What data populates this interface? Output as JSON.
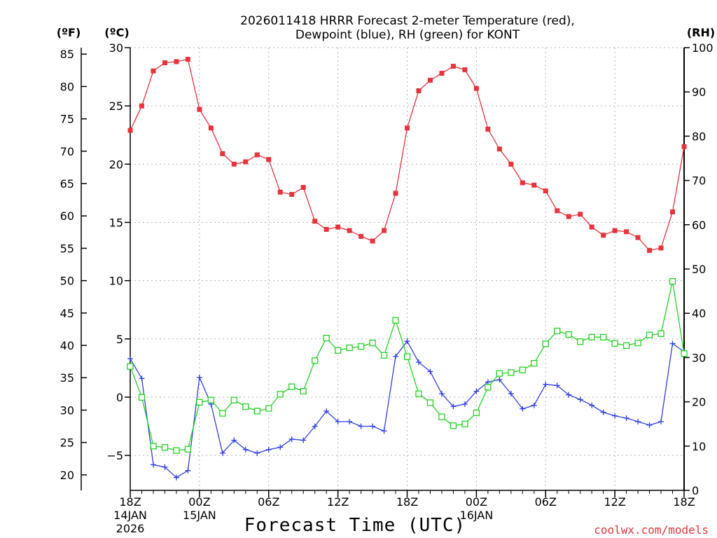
{
  "chart_data": {
    "type": "line",
    "title_lines": [
      "2026011418 HRRR Forecast 2-meter Temperature (red),",
      "Dewpoint (blue), RH (green) for KONT"
    ],
    "units": {
      "fahrenheit": "(ºF)",
      "celsius": "(ºC)",
      "rh": "(RH)"
    },
    "xlabel": "Forecast Time (UTC)",
    "credit": "coolwx.com/models",
    "x_hours": [
      0,
      1,
      2,
      3,
      4,
      5,
      6,
      7,
      8,
      9,
      10,
      11,
      12,
      13,
      14,
      15,
      16,
      17,
      18,
      19,
      20,
      21,
      22,
      23,
      24,
      25,
      26,
      27,
      28,
      29,
      30,
      31,
      32,
      33,
      34,
      35,
      36,
      37,
      38,
      39,
      40,
      41,
      42,
      43,
      44,
      45,
      46,
      47,
      48
    ],
    "xlim": [
      0,
      48
    ],
    "x_ticks": [
      {
        "hour": 0,
        "label": "18Z",
        "sub1": "14JAN",
        "sub2": "2026"
      },
      {
        "hour": 6,
        "label": "00Z",
        "sub1": "15JAN",
        "sub2": ""
      },
      {
        "hour": 12,
        "label": "06Z",
        "sub1": "",
        "sub2": ""
      },
      {
        "hour": 18,
        "label": "12Z",
        "sub1": "",
        "sub2": ""
      },
      {
        "hour": 24,
        "label": "18Z",
        "sub1": "",
        "sub2": ""
      },
      {
        "hour": 30,
        "label": "00Z",
        "sub1": "16JAN",
        "sub2": ""
      },
      {
        "hour": 36,
        "label": "06Z",
        "sub1": "",
        "sub2": ""
      },
      {
        "hour": 42,
        "label": "12Z",
        "sub1": "",
        "sub2": ""
      },
      {
        "hour": 48,
        "label": "18Z",
        "sub1": "",
        "sub2": ""
      }
    ],
    "celsius_axis": {
      "ylim": [
        -8,
        30
      ],
      "ticks": [
        -5,
        0,
        5,
        10,
        15,
        20,
        25,
        30
      ],
      "tick_labels": [
        "−5",
        "0",
        "5",
        "10",
        "15",
        "20",
        "25",
        "30"
      ]
    },
    "fahrenheit_axis": {
      "ticks": [
        20,
        25,
        30,
        35,
        40,
        45,
        50,
        55,
        60,
        65,
        70,
        75,
        80,
        85
      ],
      "tick_labels": [
        "20",
        "25",
        "30",
        "35",
        "40",
        "45",
        "50",
        "55",
        "60",
        "65",
        "70",
        "75",
        "80",
        "85"
      ]
    },
    "rh_axis": {
      "ylim": [
        0,
        100
      ],
      "ticks": [
        0,
        10,
        20,
        30,
        40,
        50,
        60,
        70,
        80,
        90,
        100
      ],
      "tick_labels": [
        "0",
        "10",
        "20",
        "30",
        "40",
        "50",
        "60",
        "70",
        "80",
        "90",
        "100"
      ]
    },
    "series": [
      {
        "name": "Temperature",
        "axis": "celsius",
        "color": "#e8323c",
        "marker": "filled-square",
        "values": [
          22.9,
          25.0,
          28.0,
          28.7,
          28.8,
          29.0,
          24.7,
          23.1,
          20.9,
          20.0,
          20.2,
          20.8,
          20.4,
          17.6,
          17.4,
          18.0,
          15.1,
          14.4,
          14.6,
          14.3,
          13.8,
          13.4,
          14.3,
          17.5,
          23.1,
          26.3,
          27.2,
          27.8,
          28.4,
          28.1,
          26.5,
          23.0,
          21.3,
          20.0,
          18.4,
          18.2,
          17.7,
          16.0,
          15.5,
          15.7,
          14.6,
          13.9,
          14.3,
          14.2,
          13.7,
          12.6,
          12.8,
          15.9,
          21.5
        ]
      },
      {
        "name": "Dewpoint",
        "axis": "celsius",
        "color": "#2e3ee8",
        "marker": "plus",
        "values": [
          3.3,
          1.6,
          -5.8,
          -6.0,
          -6.9,
          -6.3,
          1.7,
          -0.6,
          -4.8,
          -3.7,
          -4.5,
          -4.8,
          -4.5,
          -4.3,
          -3.6,
          -3.7,
          -2.5,
          -1.2,
          -2.1,
          -2.1,
          -2.5,
          -2.5,
          -2.9,
          3.5,
          4.8,
          3.0,
          2.2,
          0.3,
          -0.8,
          -0.6,
          0.5,
          1.3,
          1.5,
          0.3,
          -1.0,
          -0.7,
          1.1,
          1.0,
          0.2,
          -0.2,
          -0.7,
          -1.3,
          -1.6,
          -1.8,
          -2.1,
          -2.4,
          -2.1,
          4.6,
          3.9
        ]
      },
      {
        "name": "RH",
        "axis": "rh",
        "color": "#22d322",
        "marker": "open-square",
        "values": [
          28,
          21,
          10,
          9.7,
          9,
          9.3,
          19.9,
          20.4,
          17.4,
          20.4,
          18.9,
          17.9,
          18.5,
          21.7,
          23.4,
          22.4,
          29.3,
          34.4,
          31.6,
          32.2,
          32.5,
          33.3,
          30.5,
          38.4,
          30.2,
          21.8,
          19.8,
          16.6,
          14.6,
          15,
          17.5,
          23.3,
          26.4,
          26.6,
          27.2,
          28.7,
          33.1,
          36,
          35.2,
          33.6,
          34.6,
          34.6,
          33.2,
          32.7,
          33.3,
          35.1,
          35.4,
          47.2,
          30.9
        ]
      }
    ],
    "grid": true
  }
}
